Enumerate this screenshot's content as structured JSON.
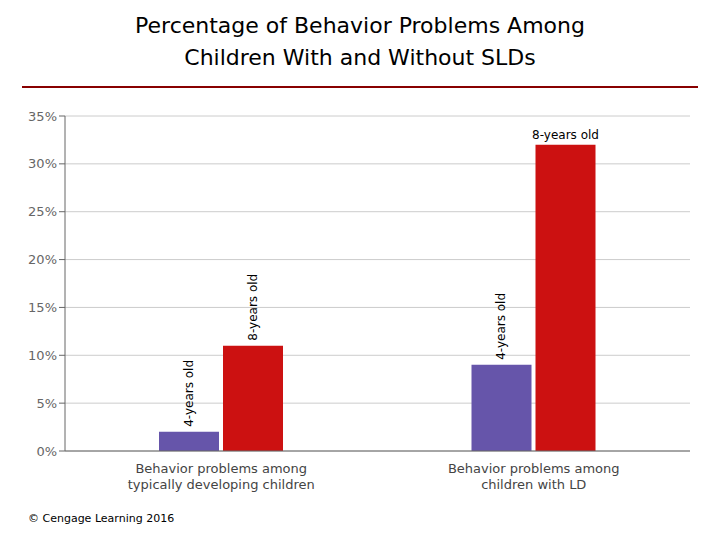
{
  "chart_data": {
    "type": "bar",
    "title": "Percentage of Behavior Problems Among\nChildren With and Without SLDs",
    "annotations": [
      "© Cengage Learning 2016"
    ],
    "categories": [
      "Behavior problems among\ntypically developing children",
      "Behavior problems among\nchildren with LD"
    ],
    "series": [
      {
        "name": "4-years old",
        "color": "#6655aa",
        "values": [
          2,
          9
        ]
      },
      {
        "name": "8-years old",
        "color": "#cc1111",
        "values": [
          11,
          32
        ]
      }
    ],
    "ylim": [
      0,
      35
    ],
    "yticks": [
      {
        "value": 0,
        "label": "0%"
      },
      {
        "value": 5,
        "label": "5%"
      },
      {
        "value": 10,
        "label": "10%"
      },
      {
        "value": 15,
        "label": "15%"
      },
      {
        "value": 20,
        "label": "20%"
      },
      {
        "value": 25,
        "label": "25%"
      },
      {
        "value": 30,
        "label": "30%"
      },
      {
        "value": 35,
        "label": "35%"
      }
    ],
    "grid": true
  }
}
